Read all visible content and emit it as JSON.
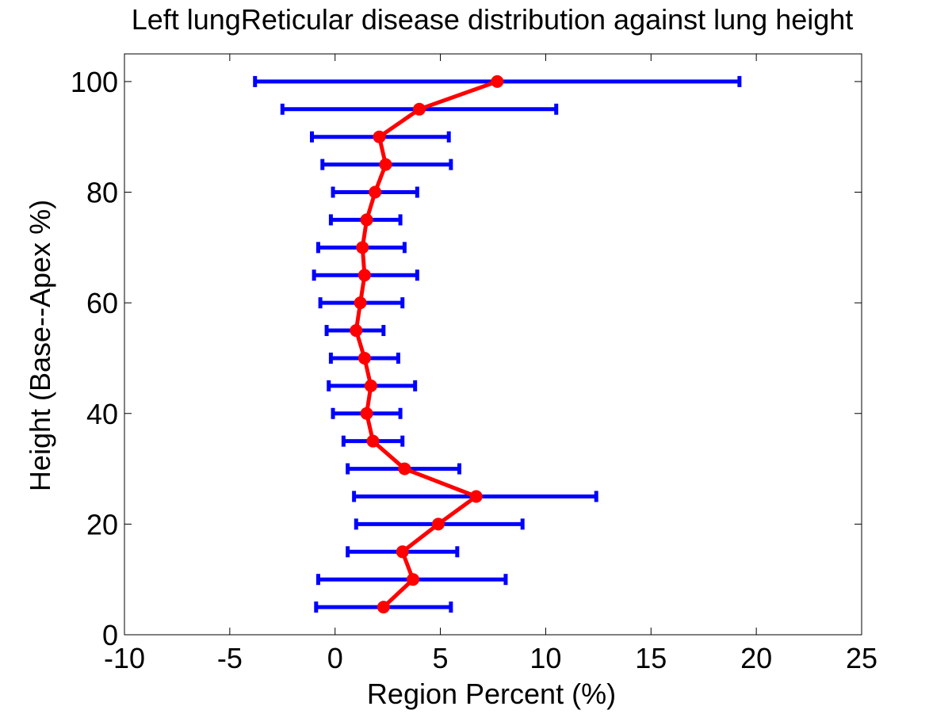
{
  "chart_data": {
    "type": "line",
    "title": "Left lungReticular disease distribution against lung height",
    "xlabel": "Region Percent (%)",
    "ylabel": "Height (Base--Apex %)",
    "xlim": [
      -10,
      25
    ],
    "ylim": [
      0,
      105
    ],
    "x_ticks": [
      -10,
      -5,
      0,
      5,
      10,
      15,
      20,
      25
    ],
    "y_ticks": [
      0,
      20,
      40,
      60,
      80,
      100
    ],
    "x_tick_labels": [
      "-10",
      "-5",
      "0",
      "5",
      "10",
      "15",
      "20",
      "25"
    ],
    "y_tick_labels": [
      "0",
      "20",
      "40",
      "60",
      "80",
      "100"
    ],
    "grid": false,
    "series": [
      {
        "style": "line with markers and horizontal error bars",
        "line_color": "#ff0000",
        "errorbar_color": "#0000ff",
        "points": [
          {
            "height": 100,
            "mean": 7.7,
            "low": -3.8,
            "high": 19.2
          },
          {
            "height": 95,
            "mean": 4.0,
            "low": -2.5,
            "high": 10.5
          },
          {
            "height": 90,
            "mean": 2.1,
            "low": -1.1,
            "high": 5.4
          },
          {
            "height": 85,
            "mean": 2.4,
            "low": -0.6,
            "high": 5.5
          },
          {
            "height": 80,
            "mean": 1.9,
            "low": -0.1,
            "high": 3.9
          },
          {
            "height": 75,
            "mean": 1.5,
            "low": -0.2,
            "high": 3.1
          },
          {
            "height": 70,
            "mean": 1.3,
            "low": -0.8,
            "high": 3.3
          },
          {
            "height": 65,
            "mean": 1.4,
            "low": -1.0,
            "high": 3.9
          },
          {
            "height": 60,
            "mean": 1.2,
            "low": -0.7,
            "high": 3.2
          },
          {
            "height": 55,
            "mean": 1.0,
            "low": -0.4,
            "high": 2.3
          },
          {
            "height": 50,
            "mean": 1.4,
            "low": -0.2,
            "high": 3.0
          },
          {
            "height": 45,
            "mean": 1.7,
            "low": -0.3,
            "high": 3.8
          },
          {
            "height": 40,
            "mean": 1.5,
            "low": -0.1,
            "high": 3.1
          },
          {
            "height": 35,
            "mean": 1.8,
            "low": 0.4,
            "high": 3.2
          },
          {
            "height": 30,
            "mean": 3.3,
            "low": 0.6,
            "high": 5.9
          },
          {
            "height": 25,
            "mean": 6.7,
            "low": 0.9,
            "high": 12.4
          },
          {
            "height": 20,
            "mean": 4.9,
            "low": 1.0,
            "high": 8.9
          },
          {
            "height": 15,
            "mean": 3.2,
            "low": 0.6,
            "high": 5.8
          },
          {
            "height": 10,
            "mean": 3.7,
            "low": -0.8,
            "high": 8.1
          },
          {
            "height": 5,
            "mean": 2.3,
            "low": -0.9,
            "high": 5.5
          }
        ]
      }
    ]
  }
}
